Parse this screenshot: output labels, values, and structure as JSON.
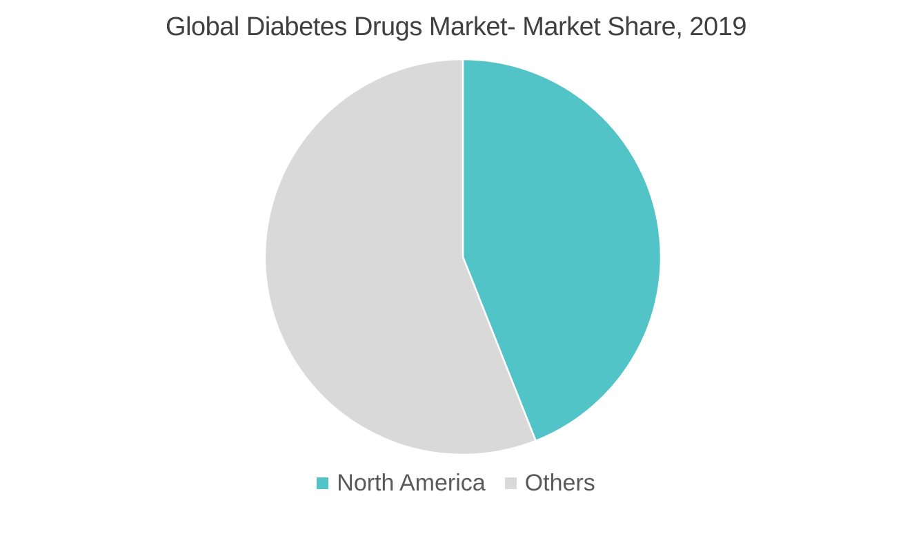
{
  "chart_data": {
    "type": "pie",
    "title": "Global Diabetes Drugs Market- Market Share, 2019",
    "slices": [
      {
        "name": "North America",
        "value": 44,
        "color": "#52C4C8"
      },
      {
        "name": "Others",
        "value": 56,
        "color": "#D9D9D9"
      }
    ],
    "legend_position": "bottom"
  }
}
